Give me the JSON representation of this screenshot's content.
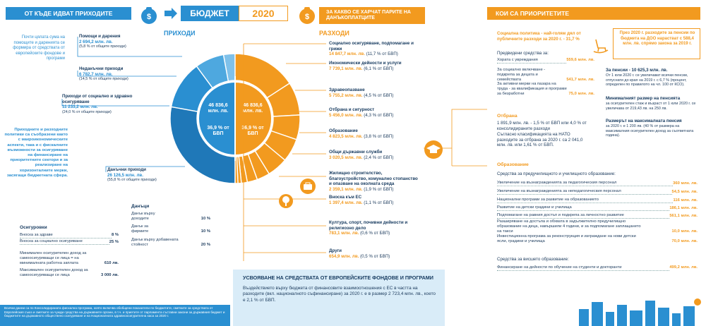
{
  "header": {
    "left_band": "ОТ КЪДЕ ИДВАТ ПРИХОДИТЕ",
    "title": "БЮДЖЕТ",
    "year": "2020",
    "mid_band": "ЗА КАКВО СЕ ХАРЧАТ ПАРИТЕ НА ДАНЪКОПЛАТЦИТЕ",
    "right_band": "КОИ СА ПРИОРИТЕТИТЕ",
    "revenues_label": "ПРИХОДИ",
    "expenses_label": "РАЗХОДИ"
  },
  "left": {
    "intro": "Почти цялата сума на помощите и даренията се формира от средствата от европейските фондове и програми",
    "policy": "Приходните и разходните политики са съобразени както с макроикономическите аспекти, така и с фискалните възможности за осигуряване на финансиране на приоритетните сектори и за реализиране на хоризонталните мерки, засягащи бюджетната сфера.",
    "revenues": [
      {
        "title": "Помощи и дарения",
        "value": "2 694,2 млн. лв.",
        "share": "(5,8 % от общите приходи)"
      },
      {
        "title": "Неданъчни приходи",
        "value": "6 782,7 млн. лв.",
        "share": "(14,5 % от общите приходи)"
      },
      {
        "title": "Приходи от социално и здравно осигуряване",
        "value": "11 233,2 млн. лв.",
        "share": "(24,0 % от общите приходи)"
      },
      {
        "title": "Данъчни приходи",
        "value": "26 126,5 млн. лв.",
        "share": "(55,8 % от общите приходи)"
      }
    ],
    "insurance": {
      "title": "Осигуровки",
      "rows": [
        {
          "label": "Вноска за здраве",
          "value": "8 %"
        },
        {
          "label": "Вноска за социално осигуряване",
          "value": "25 %"
        },
        {
          "label": "Минимален осигурителен доход за самоосигуряващи се лица = на минималната работна заплата",
          "value": "610 лв."
        },
        {
          "label": "Максимален осигурителен доход за самоосигуряващи се лица",
          "value": "3 000 лв."
        }
      ]
    },
    "taxes": {
      "title": "Данъци",
      "rows": [
        {
          "label": "Данък върху доходите",
          "value": "10 %"
        },
        {
          "label": "Данък за фирмите",
          "value": "10 %"
        },
        {
          "label": "Данък върху добавената стойност",
          "value": "20 %"
        }
      ]
    },
    "footnote": "Всички данни са по Консолидираната фискална програма, която включва обобщени показатели по бюджетите, сметките за средствата от Европейския съюз и сметките за чужди средства на държавните органи, в т.ч. и приетите от парламента съставни закони за държавния бюджет и бюджетите на държавното обществено осигуряване и на Националната здравноосигурителна каса за 2020 г."
  },
  "center": {
    "rev_total": "46 836,6 млн. лв.",
    "rev_gdp": "36,9 % от БВП",
    "exp_total": "46 836,6 млн. лв.",
    "exp_gdp": "36,9 % от БВП"
  },
  "expenses": [
    {
      "title": "Социално осигуряване, подпомагане и грижи",
      "value": "14 847,7 млн. лв.",
      "gdp": "(11,7 % от БВП)"
    },
    {
      "title": "Икономически дейности и услуги",
      "value": "7 739,1 млн. лв.",
      "gdp": "(6,1 % от БВП)"
    },
    {
      "title": "Здравеопазване",
      "value": "5 755,2 млн. лв.",
      "gdp": "(4,5 % от БВП)"
    },
    {
      "title": "Отбрана и сигурност",
      "value": "5 456,0 млн. лв.",
      "gdp": "(4,3 % от БВП)"
    },
    {
      "title": "Образование",
      "value": "4 823,5 млн. лв.",
      "gdp": "(3,8 % от БВП)"
    },
    {
      "title": "Общи държавни служби",
      "value": "3 020,5 млн. лв.",
      "gdp": "(2,4 % от БВП)"
    },
    {
      "title": "Жилищно строителство, благоустройство, комунално стопанство и опазване на околната среда",
      "value": "2 359,1 млн. лв.",
      "gdp": "(1,9 % от БВП)"
    },
    {
      "title": "Вноска към ЕС",
      "value": "1 397,4 млн. лв.",
      "gdp": "(1,1 % от БВП)"
    },
    {
      "title": "Култура, спорт, почивни дейности и религиозно дело",
      "value": "783,1 млн. лв.",
      "gdp": "(0,6 % от БВП)"
    },
    {
      "title": "Други",
      "value": "654,9 млн. лв.",
      "gdp": "(0,5 % от БВП)"
    }
  ],
  "eu_box": {
    "title": "УСВОЯВАНЕ НА СРЕДСТВАТА ОТ ЕВРОПЕЙСКИТЕ ФОНДОВЕ И ПРОГРАМИ",
    "text": "Въздействието върху бюджета от финансовите взаимоотношения с ЕС в частта на разходите (вкл. националното съфинансиране) за 2020 г. е в размер 2 723,4 млн. лв., което е 2,1 % от БВП."
  },
  "priorities": {
    "social_title": "Социална политика - най-голям дял от публичните разходи за 2020 г. - 31,7 %",
    "social_intro": "Предвидени средства за:",
    "social_rows": [
      {
        "label": "Хората с увреждания",
        "value": "559,6 млн. лв."
      },
      {
        "label": "За социално включване - подкрепа за децата и семействата",
        "value": "541,7 млн. лв."
      },
      {
        "label": "За активни мерки на пазара на труда - за квалификация и програми за безработни",
        "value": "75,0 млн. лв."
      }
    ],
    "pension_box": "През 2020 г. разходите за пенсии по бюджета на ДОО нарастват с 588,4 млн. лв. спрямо закона за 2019 г.",
    "pensions_title": "За пенсии - 10 625,3 млн. лв.",
    "pensions_text": "От 1 юли 2020 г. се увеличават всички пенсии, отпуснати до края на 2019 г. с 6,7 % (процент, определен по правилото на чл. 100 от КСО).",
    "min_pension_title": "Минималният размер на пенсията",
    "min_pension_text": "за осигурителен стаж и възраст от 1 юли 2020 г. се увеличава от 219,43 лв. на 250 лв.",
    "max_pension_title": "Размерът на максималната пенсия",
    "max_pension_text": "за 2020 г. е 1 200 лв. (40 % от размера на максималния осигурителен доход за съответната година).",
    "defense_title": "Отбрана",
    "defense_text": "1 891,9 млн. лв. - 1,5 % от БВП или 4,0 % от консолидираните разходи",
    "nato_text": "Съгласно класификацията на НАТО разходите за отбрана за 2020 г. са 2 041,0 млн. лв. или 1,61 % от БВП.",
    "edu_title": "Образование",
    "edu_pre": "Средства за предучилищното и училищното образование:",
    "edu_rows": [
      {
        "label": "Увеличение на възнагражденията за педагогическия персонал",
        "value": "360 млн. лв."
      },
      {
        "label": "Увеличение на възнагражденията за непедагогическия персонал",
        "value": "54,5 млн. лв."
      },
      {
        "label": "Национални програми за развитие на образованието",
        "value": "116 млн. лв."
      },
      {
        "label": "Развитие на детски градини и училища",
        "value": "186,1 млн. лв."
      },
      {
        "label": "Подпомагане на равния достъп и подкрепа за личностно развитие",
        "value": "561,1 млн. лв."
      },
      {
        "label": "Разширяване на достъпа и обхвата в задължително предучилищно образование на деца, навършили 4 години, и за подпомагане заплащането на такси",
        "value": "10,0 млн. лв."
      },
      {
        "label": "Инвестиционна програма за реконструкция и изграждане на нови детски ясли, градини и училища",
        "value": "70,0 млн. лв."
      }
    ],
    "higher_title": "Средства за висшето образование:",
    "higher_rows": [
      {
        "label": "Финансиране на дейности по обучение на студенти и докторанти",
        "value": "499,2 млн. лв."
      }
    ]
  },
  "colors": {
    "blue": "#2a8fd1",
    "orange": "#f29a1f",
    "navy": "#163a5f"
  }
}
